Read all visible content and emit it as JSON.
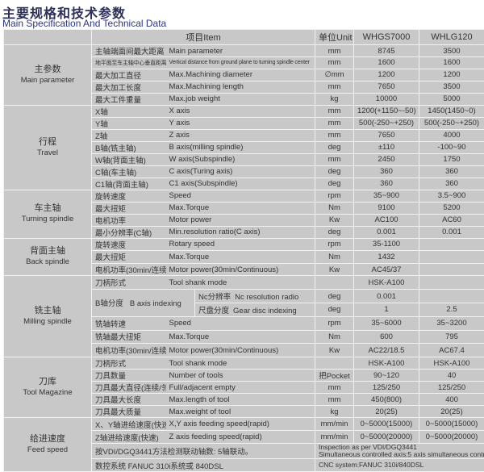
{
  "title_cn": "主要规格和技术参数",
  "title_en": "Main  Specification And Technical Data",
  "header": {
    "item": "项目Item",
    "unit": "单位Unit",
    "model1": "WHGS7000",
    "model2": "WHLG120"
  },
  "groups": [
    {
      "cn": "主参数",
      "en": "Main parameter",
      "rows": [
        {
          "cn": "主轴端面间最大距离",
          "en": "Main parameter",
          "unit": "mm",
          "v1": "8745",
          "v2": "3500"
        },
        {
          "cn": "地平面至车主轴中心垂直距离",
          "en": "Vertical distance from ground plane to turning spindle center",
          "unit": "mm",
          "v1": "1600",
          "v2": "1600",
          "small": true
        },
        {
          "cn": "最大加工直径",
          "en": "Max.Machining diameter",
          "unit": "∅mm",
          "v1": "1200",
          "v2": "1200"
        },
        {
          "cn": "最大加工长度",
          "en": "Max.Machining length",
          "unit": "mm",
          "v1": "7650",
          "v2": "3500"
        },
        {
          "cn": "最大工件重量",
          "en": "Max.job weight",
          "unit": "kg",
          "v1": "10000",
          "v2": "5000"
        }
      ]
    },
    {
      "cn": "行程",
      "en": "Travel",
      "rows": [
        {
          "cn": "X轴",
          "en": "X axis",
          "unit": "mm",
          "v1": "1200(+1150~-50)",
          "v2": "1450(1450~0)"
        },
        {
          "cn": "Y轴",
          "en": "Y axis",
          "unit": "mm",
          "v1": "500(-250~+250)",
          "v2": "500(-250~+250)"
        },
        {
          "cn": "Z轴",
          "en": "Z axis",
          "unit": "mm",
          "v1": "7650",
          "v2": "4000"
        },
        {
          "cn": "B轴(铣主轴)",
          "en": "B axis(milling spindle)",
          "unit": "deg",
          "v1": "±110",
          "v2": "-100~90"
        },
        {
          "cn": "W轴(背面主轴)",
          "en": "W axis(Subspindle)",
          "unit": "mm",
          "v1": "2450",
          "v2": "1750"
        },
        {
          "cn": "C轴(车主轴)",
          "en": "C axis(Turing axis)",
          "unit": "deg",
          "v1": "360",
          "v2": "360"
        },
        {
          "cn": "C1轴(背面主轴)",
          "en": "C1 axis(Subspindle)",
          "unit": "deg",
          "v1": "360",
          "v2": "360"
        }
      ]
    },
    {
      "cn": "车主轴",
      "en": "Turning spindle",
      "rows": [
        {
          "cn": "旋转速度",
          "en": "Speed",
          "unit": "rpm",
          "v1": "35~900",
          "v2": "3.5~900"
        },
        {
          "cn": "最大扭矩",
          "en": "Max.Torque",
          "unit": "Nm",
          "v1": "9100",
          "v2": "5200"
        },
        {
          "cn": "电机功率",
          "en": "Motor power",
          "unit": "Kw",
          "v1": "AC100",
          "v2": "AC60"
        },
        {
          "cn": "最小分辨率(C轴)",
          "en": "Min.resolution ratio(C axis)",
          "unit": "deg",
          "v1": "0.001",
          "v2": "0.001"
        }
      ]
    },
    {
      "cn": "背面主轴",
      "en": "Back spindle",
      "rows": [
        {
          "cn": "旋转速度",
          "en": "Rotary speed",
          "unit": "rpm",
          "v1": "35-1100",
          "v2": ""
        },
        {
          "cn": "最大扭矩",
          "en": "Max.Torque",
          "unit": "Nm",
          "v1": "1432",
          "v2": ""
        },
        {
          "cn": "电机功率(30min/连续)",
          "en": "Motor power(30min/Continuous)",
          "unit": "Kw",
          "v1": "AC45/37",
          "v2": ""
        }
      ]
    },
    {
      "cn": "铣主轴",
      "en": "Milling spindle",
      "rows": [
        {
          "cn": "刀柄形式",
          "en": "Tool shank mode",
          "unit": "",
          "v1": "HSK-A100",
          "v2": ""
        },
        {
          "type": "indexing",
          "cn": "B轴分度",
          "en": "B axis indexing",
          "subs": [
            {
              "cn": "Nc分辨率",
              "en": "Nc resolution radio",
              "unit": "deg",
              "v1": "0.001",
              "v2": ""
            },
            {
              "cn": "尺盘分度",
              "en": "Gear disc indexing",
              "unit": "deg",
              "v1": "1",
              "v2": "2.5"
            }
          ]
        },
        {
          "cn": "铣轴转速",
          "en": "Speed",
          "unit": "rpm",
          "v1": "35~6000",
          "v2": "35~3200"
        },
        {
          "cn": "铣轴最大扭矩",
          "en": "Max.Torque",
          "unit": "Nm",
          "v1": "600",
          "v2": "795"
        },
        {
          "cn": "电机功率(30min/连续)",
          "en": "Motor power(30min/Continuous)",
          "unit": "Kw",
          "v1": "AC22/18.5",
          "v2": "AC67.4"
        }
      ]
    },
    {
      "cn": "刀库",
      "en": "Tool Magazine",
      "rows": [
        {
          "cn": "刀柄形式",
          "en": "Tool shank mode",
          "unit": "",
          "v1": "HSK-A100",
          "v2": "HSK-A100"
        },
        {
          "cn": "刀具数量",
          "en": "Number of tools",
          "unit": "把Pocket",
          "v1": "90~120",
          "v2": "40"
        },
        {
          "cn": "刀具最大直径(连续/邻空)",
          "en": "Full/adjacent empty",
          "unit": "mm",
          "v1": "125/250",
          "v2": "125/250"
        },
        {
          "cn": "刀具最大长度",
          "en": "Max.length of tool",
          "unit": "mm",
          "v1": "450(800)",
          "v2": "400"
        },
        {
          "cn": "刀具最大质量",
          "en": "Max.weight of tool",
          "unit": "kg",
          "v1": "20(25)",
          "v2": "20(25)"
        }
      ]
    },
    {
      "cn": "给进速度",
      "en": "Feed speed",
      "rows": [
        {
          "cn": "X、Y轴进给速度(快速)",
          "en": "X,Y axis feeding speed(rapid)",
          "unit": "mm/min",
          "v1": "0~5000(15000)",
          "v2": "0~5000(15000)"
        },
        {
          "cn": "Z轴进给速度(快速)",
          "en": "Z axis feeding speed(rapid)",
          "unit": "mm/min",
          "v1": "0~5000(20000)",
          "v2": "0~5000(20000)"
        },
        {
          "type": "note",
          "cn": "按VDI/DGQ3441方法检测联动轴数: 5轴联动。",
          "en": "Inspection as per VDI/DGQ3441",
          "en2": "Simultaneous controlled axis:5 axis simultaneous control"
        },
        {
          "type": "note",
          "cn": "数控系统 FANUC 310i系统或 840DSL",
          "en": "CNC system:FANUC 310i/840DSL"
        }
      ]
    }
  ]
}
